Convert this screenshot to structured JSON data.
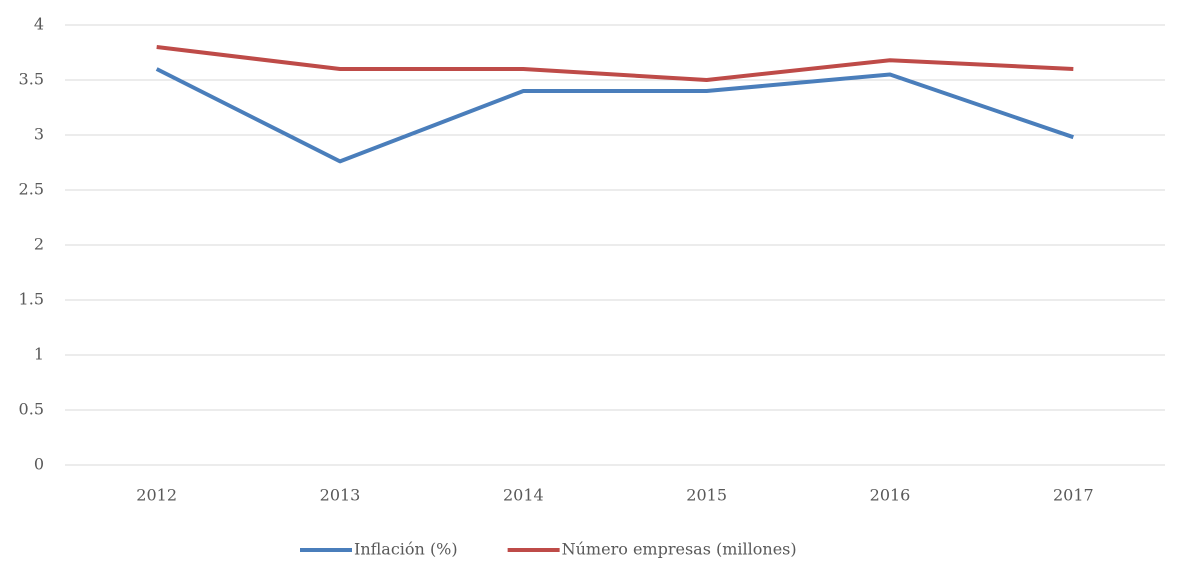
{
  "chart_data": {
    "type": "line",
    "categories": [
      "2012",
      "2013",
      "2014",
      "2015",
      "2016",
      "2017"
    ],
    "series": [
      {
        "name": "Inflación (%)",
        "color": "#4a7ebb",
        "values": [
          3.6,
          2.76,
          3.4,
          3.4,
          3.55,
          2.98
        ]
      },
      {
        "name": "Número empresas (millones)",
        "color": "#be4b48",
        "values": [
          3.8,
          3.6,
          3.6,
          3.5,
          3.68,
          3.6
        ]
      }
    ],
    "ylim": [
      0,
      4
    ],
    "yticks": [
      0,
      0.5,
      1,
      1.5,
      2,
      2.5,
      3,
      3.5,
      4
    ],
    "grid": true,
    "legend": "bottom"
  }
}
